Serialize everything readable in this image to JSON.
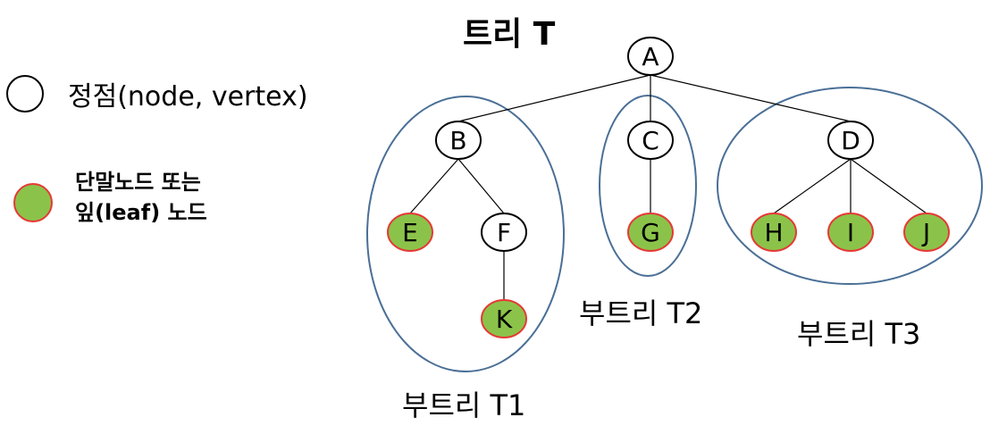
{
  "title": "트리 T",
  "legend": {
    "vertex_label": "정점(node, vertex)",
    "leaf_label_line1": "단말노드 또는",
    "leaf_label_line2": "잎(leaf) 노드"
  },
  "colors": {
    "leaf_fill": "#8bc34a",
    "leaf_stroke": "#e53935",
    "subtree_stroke": "#4a6f96",
    "edge": "#000000"
  },
  "nodes": {
    "A": "A",
    "B": "B",
    "C": "C",
    "D": "D",
    "E": "E",
    "F": "F",
    "G": "G",
    "H": "H",
    "I": "I",
    "J": "J",
    "K": "K"
  },
  "edges": [
    [
      "A",
      "B"
    ],
    [
      "A",
      "C"
    ],
    [
      "A",
      "D"
    ],
    [
      "B",
      "E"
    ],
    [
      "B",
      "F"
    ],
    [
      "F",
      "K"
    ],
    [
      "C",
      "G"
    ],
    [
      "D",
      "H"
    ],
    [
      "D",
      "I"
    ],
    [
      "D",
      "J"
    ]
  ],
  "leaves": [
    "E",
    "K",
    "G",
    "H",
    "I",
    "J"
  ],
  "subtrees": {
    "t1": "부트리 T1",
    "t2": "부트리 T2",
    "t3": "부트리 T3"
  }
}
